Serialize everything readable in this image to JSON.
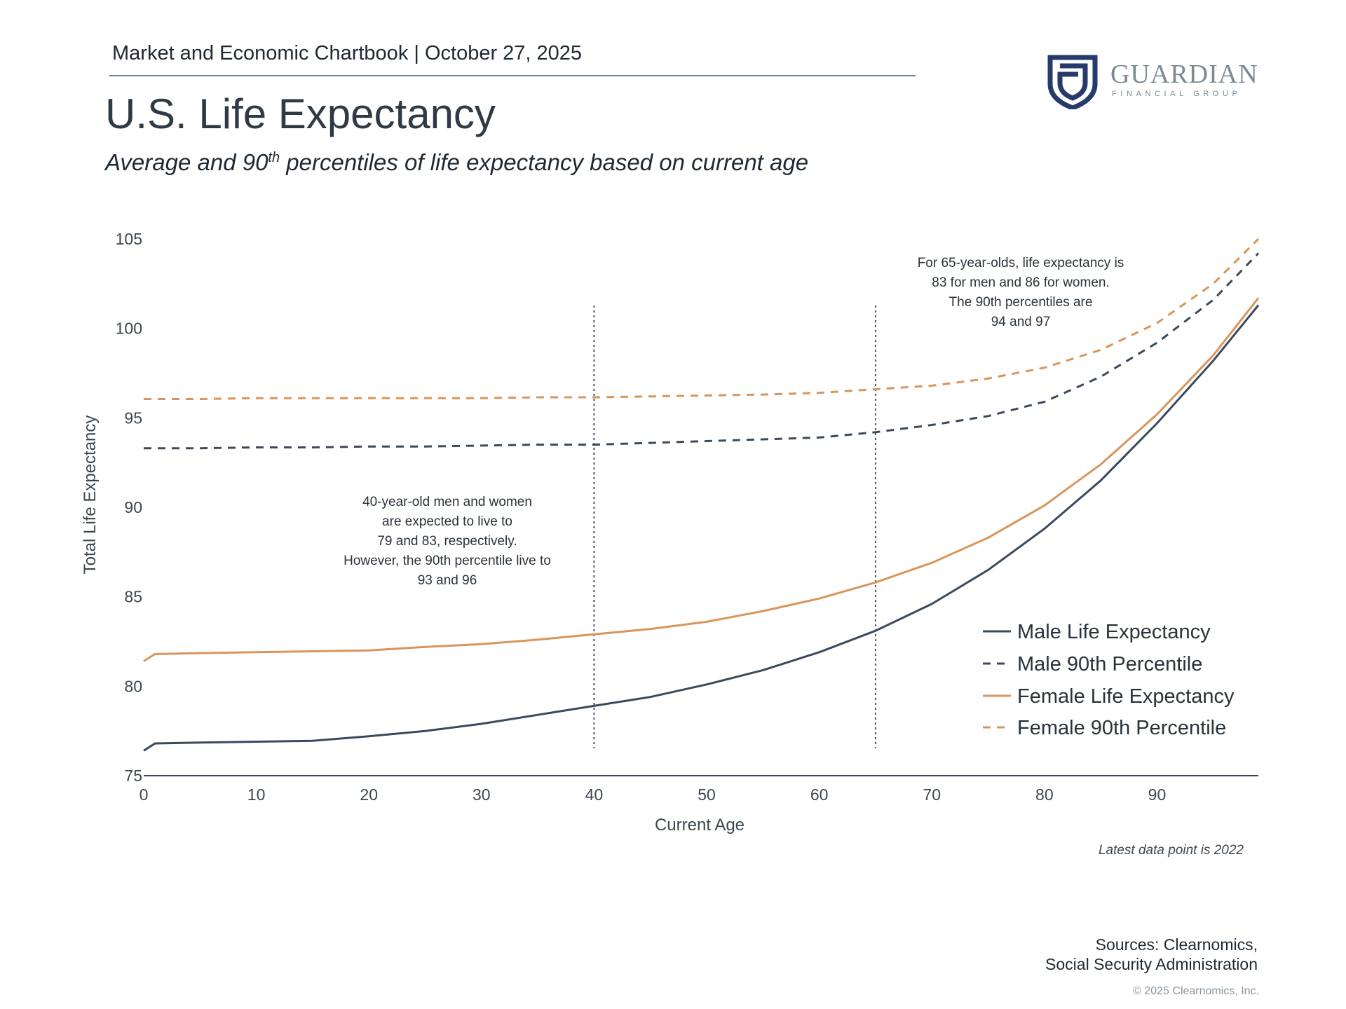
{
  "header": {
    "chartbook": "Market and Economic Chartbook | October 27, 2025",
    "title": "U.S. Life Expectancy",
    "subtitle_pre": "Average and 90",
    "subtitle_sup": "th",
    "subtitle_post": " percentiles of life expectancy based on current age"
  },
  "logo": {
    "name": "Guardian",
    "name_display": "GUARDIAN",
    "tagline": "FINANCIAL GROUP",
    "icon": "guardian-shield-icon",
    "color": "#263a6b"
  },
  "chart_data": {
    "type": "line",
    "xlabel": "Current Age",
    "ylabel": "Total Life Expectancy",
    "xlim": [
      0,
      99
    ],
    "ylim": [
      75,
      105
    ],
    "xticks": [
      0,
      10,
      20,
      30,
      40,
      50,
      60,
      70,
      80,
      90
    ],
    "yticks": [
      75,
      80,
      85,
      90,
      95,
      100,
      105
    ],
    "grid": false,
    "legend": "bottom-right",
    "reference_lines": [
      40,
      65
    ],
    "series": [
      {
        "name": "Male Life Expectancy",
        "style": "solid",
        "color": "#3a4a5c",
        "x": [
          0,
          1,
          5,
          10,
          15,
          20,
          25,
          30,
          35,
          40,
          45,
          50,
          55,
          60,
          65,
          70,
          75,
          80,
          85,
          90,
          95,
          99
        ],
        "y": [
          76.4,
          76.8,
          76.85,
          76.9,
          76.95,
          77.2,
          77.5,
          77.9,
          78.4,
          78.9,
          79.4,
          80.1,
          80.9,
          81.9,
          83.1,
          84.6,
          86.5,
          88.8,
          91.5,
          94.7,
          98.2,
          101.3
        ]
      },
      {
        "name": "Male 90th Percentile",
        "style": "dashed",
        "color": "#3a4a5c",
        "x": [
          0,
          5,
          10,
          15,
          20,
          25,
          30,
          35,
          40,
          45,
          50,
          55,
          60,
          65,
          70,
          75,
          80,
          85,
          90,
          95,
          99
        ],
        "y": [
          93.3,
          93.3,
          93.35,
          93.35,
          93.4,
          93.4,
          93.45,
          93.5,
          93.5,
          93.6,
          93.7,
          93.8,
          93.9,
          94.2,
          94.6,
          95.1,
          95.9,
          97.3,
          99.2,
          101.6,
          104.2
        ]
      },
      {
        "name": "Female Life Expectancy",
        "style": "solid",
        "color": "#d9955a",
        "x": [
          0,
          1,
          5,
          10,
          15,
          20,
          25,
          30,
          35,
          40,
          45,
          50,
          55,
          60,
          65,
          70,
          75,
          80,
          85,
          90,
          95,
          99
        ],
        "y": [
          81.4,
          81.8,
          81.85,
          81.9,
          81.95,
          82.0,
          82.2,
          82.35,
          82.6,
          82.9,
          83.2,
          83.6,
          84.2,
          84.9,
          85.8,
          86.9,
          88.3,
          90.1,
          92.4,
          95.2,
          98.5,
          101.7
        ]
      },
      {
        "name": "Female 90th Percentile",
        "style": "dashed",
        "color": "#d9955a",
        "x": [
          0,
          5,
          10,
          15,
          20,
          25,
          30,
          35,
          40,
          45,
          50,
          55,
          60,
          65,
          70,
          75,
          80,
          85,
          90,
          95,
          99
        ],
        "y": [
          96.05,
          96.05,
          96.1,
          96.1,
          96.1,
          96.1,
          96.1,
          96.15,
          96.15,
          96.2,
          96.25,
          96.3,
          96.4,
          96.6,
          96.8,
          97.2,
          97.8,
          98.8,
          100.3,
          102.5,
          105.0
        ]
      }
    ],
    "annotations": [
      {
        "lines": [
          "40-year-old men and women",
          "are expected to live to",
          "79 and 83, respectively.",
          "However, the 90th percentile live to",
          "93 and 96"
        ]
      },
      {
        "lines": [
          "For 65-year-olds, life expectancy is",
          "83 for men and 86 for women.",
          "The 90th percentiles are",
          "94 and 97"
        ]
      }
    ]
  },
  "footnote": "Latest data point is 2022",
  "sources": {
    "line1": "Sources: Clearnomics,",
    "line2": "Social Security Administration"
  },
  "copyright": "© 2025 Clearnomics, Inc."
}
